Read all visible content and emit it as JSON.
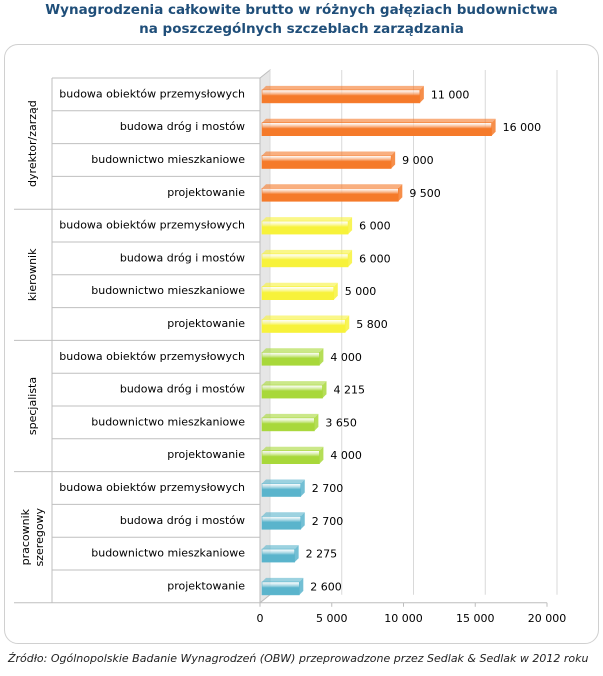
{
  "chart_data": {
    "type": "bar",
    "orientation": "horizontal",
    "title_line1": "Wynagrodzenia całkowite brutto w różnych gałęziach budownictwa",
    "title_line2": "na poszczególnych szczeblach zarządzania",
    "xlim": [
      0,
      20000
    ],
    "xticks": [
      {
        "value": 0,
        "label": "0"
      },
      {
        "value": 5000,
        "label": "5 000"
      },
      {
        "value": 10000,
        "label": "10 000"
      },
      {
        "value": 15000,
        "label": "15 000"
      },
      {
        "value": 20000,
        "label": "20 000"
      }
    ],
    "grid": true,
    "groups": [
      {
        "name": "dyrektor/zarząd",
        "color": "#f57a2a",
        "items": [
          {
            "category": "budowa obiektów przemysłowych",
            "value": 11000,
            "label": "11 000"
          },
          {
            "category": "budowa dróg i mostów",
            "value": 16000,
            "label": "16 000"
          },
          {
            "category": "budownictwo mieszkaniowe",
            "value": 9000,
            "label": "9 000"
          },
          {
            "category": "projektowanie",
            "value": 9500,
            "label": "9 500"
          }
        ]
      },
      {
        "name": "kierownik",
        "color": "#f7f23a",
        "items": [
          {
            "category": "budowa obiektów przemysłowych",
            "value": 6000,
            "label": "6 000"
          },
          {
            "category": "budowa dróg i mostów",
            "value": 6000,
            "label": "6 000"
          },
          {
            "category": "budownictwo mieszkaniowe",
            "value": 5000,
            "label": "5 000"
          },
          {
            "category": "projektowanie",
            "value": 5800,
            "label": "5 800"
          }
        ]
      },
      {
        "name": "specjalista",
        "color": "#a8d83a",
        "items": [
          {
            "category": "budowa obiektów przemysłowych",
            "value": 4000,
            "label": "4 000"
          },
          {
            "category": "budowa dróg i mostów",
            "value": 4215,
            "label": "4 215"
          },
          {
            "category": "budownictwo mieszkaniowe",
            "value": 3650,
            "label": "3 650"
          },
          {
            "category": "projektowanie",
            "value": 4000,
            "label": "4 000"
          }
        ]
      },
      {
        "name": "pracownik szeregowy",
        "name_lines": [
          "pracownik",
          "szeregowy"
        ],
        "color": "#5ab4cc",
        "items": [
          {
            "category": "budowa obiektów przemysłowych",
            "value": 2700,
            "label": "2 700"
          },
          {
            "category": "budowa dróg i mostów",
            "value": 2700,
            "label": "2 700"
          },
          {
            "category": "budownictwo mieszkaniowe",
            "value": 2275,
            "label": "2 275"
          },
          {
            "category": "projektowanie",
            "value": 2600,
            "label": "2 600"
          }
        ]
      }
    ]
  },
  "source": "Źródło: Ogólnopolskie Badanie Wynagrodzeń (OBW) przeprowadzone przez Sedlak & Sedlak w 2012 roku"
}
